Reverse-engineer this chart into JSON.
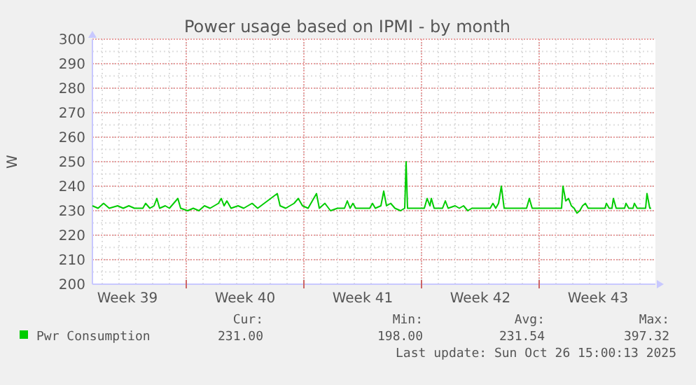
{
  "chart_data": {
    "type": "line",
    "title": "Power usage based on IPMI - by month",
    "ylabel": "W",
    "xlim": [
      "2025-09-23T10:00",
      "2025-10-26T22:00"
    ],
    "xticks": [
      {
        "value": "2025-09-25T12:00",
        "label": "Week 39"
      },
      {
        "value": "2025-09-29T00:00",
        "label": null
      },
      {
        "value": "2025-10-02T12:00",
        "label": "Week 40"
      },
      {
        "value": "2025-10-06T00:00",
        "label": null
      },
      {
        "value": "2025-10-09T12:00",
        "label": "Week 41"
      },
      {
        "value": "2025-10-13T00:00",
        "label": null
      },
      {
        "value": "2025-10-16T12:00",
        "label": "Week 42"
      },
      {
        "value": "2025-10-20T00:00",
        "label": null
      },
      {
        "value": "2025-10-23T12:00",
        "label": "Week 43"
      }
    ],
    "ylim": [
      200,
      300
    ],
    "yticks": [
      200,
      210,
      220,
      230,
      240,
      250,
      260,
      270,
      280,
      290,
      300
    ],
    "grid": true,
    "legend": "bottom",
    "marker": "none",
    "line_style": "solid",
    "series": [
      {
        "name": "Pwr Consumption",
        "color": "#00cc00",
        "x": [
          "2025-09-23T10:00",
          "2025-09-23T18:00",
          "2025-09-24T02:00",
          "2025-09-24T10:00",
          "2025-09-24T22:00",
          "2025-09-25T06:00",
          "2025-09-25T14:00",
          "2025-09-25T22:00",
          "2025-09-26T10:00",
          "2025-09-26T14:00",
          "2025-09-26T20:00",
          "2025-09-27T02:00",
          "2025-09-27T06:00",
          "2025-09-27T10:00",
          "2025-09-27T18:00",
          "2025-09-28T00:00",
          "2025-09-28T12:00",
          "2025-09-28T16:00",
          "2025-09-29T02:00",
          "2025-09-29T10:00",
          "2025-09-29T18:00",
          "2025-09-30T02:00",
          "2025-09-30T10:00",
          "2025-09-30T22:00",
          "2025-10-01T02:00",
          "2025-10-01T06:00",
          "2025-10-01T10:00",
          "2025-10-01T16:00",
          "2025-10-02T02:00",
          "2025-10-02T10:00",
          "2025-10-02T22:00",
          "2025-10-03T06:00",
          "2025-10-04T10:00",
          "2025-10-04T14:00",
          "2025-10-04T22:00",
          "2025-10-05T10:00",
          "2025-10-05T16:00",
          "2025-10-05T22:00",
          "2025-10-06T06:00",
          "2025-10-06T18:00",
          "2025-10-06T22:00",
          "2025-10-07T06:00",
          "2025-10-07T14:00",
          "2025-10-08T00:00",
          "2025-10-08T10:00",
          "2025-10-08T14:00",
          "2025-10-08T18:00",
          "2025-10-08T22:00",
          "2025-10-09T02:00",
          "2025-10-09T22:00",
          "2025-10-10T02:00",
          "2025-10-10T06:00",
          "2025-10-10T14:00",
          "2025-10-10T18:00",
          "2025-10-10T22:00",
          "2025-10-11T04:00",
          "2025-10-11T10:00",
          "2025-10-11T18:00",
          "2025-10-12T00:00",
          "2025-10-12T02:00",
          "2025-10-12T04:00",
          "2025-10-13T04:00",
          "2025-10-13T08:00",
          "2025-10-13T12:00",
          "2025-10-13T14:00",
          "2025-10-13T18:00",
          "2025-10-14T06:00",
          "2025-10-14T10:00",
          "2025-10-14T14:00",
          "2025-10-15T00:00",
          "2025-10-15T06:00",
          "2025-10-15T12:00",
          "2025-10-15T18:00",
          "2025-10-16T00:00",
          "2025-10-17T02:00",
          "2025-10-17T06:00",
          "2025-10-17T10:00",
          "2025-10-17T14:00",
          "2025-10-17T18:00",
          "2025-10-17T22:00",
          "2025-10-19T06:00",
          "2025-10-19T10:00",
          "2025-10-19T14:00",
          "2025-10-21T08:00",
          "2025-10-21T10:00",
          "2025-10-21T14:00",
          "2025-10-21T18:00",
          "2025-10-21T22:00",
          "2025-10-22T02:00",
          "2025-10-22T06:00",
          "2025-10-22T10:00",
          "2025-10-22T14:00",
          "2025-10-22T18:00",
          "2025-10-22T22:00",
          "2025-10-23T22:00",
          "2025-10-24T00:00",
          "2025-10-24T04:00",
          "2025-10-24T08:00",
          "2025-10-24T10:00",
          "2025-10-24T14:00",
          "2025-10-25T02:00",
          "2025-10-25T04:00",
          "2025-10-25T08:00",
          "2025-10-25T14:00",
          "2025-10-25T16:00",
          "2025-10-25T20:00",
          "2025-10-26T08:00",
          "2025-10-26T10:00",
          "2025-10-26T14:00",
          "2025-10-26T16:00"
        ],
        "values": [
          232,
          231,
          233,
          231,
          232,
          231,
          232,
          231,
          231,
          233,
          231,
          232,
          235,
          231,
          232,
          231,
          235,
          231,
          230,
          231,
          230,
          232,
          231,
          233,
          235,
          232,
          234,
          231,
          232,
          231,
          233,
          231,
          237,
          232,
          231,
          233,
          235,
          232,
          231,
          237,
          231,
          233,
          230,
          231,
          231,
          234,
          231,
          233,
          231,
          231,
          233,
          231,
          232,
          238,
          232,
          233,
          231,
          230,
          231,
          250,
          231,
          231,
          235,
          232,
          235,
          231,
          231,
          234,
          231,
          232,
          231,
          232,
          230,
          231,
          231,
          233,
          231,
          233,
          240,
          231,
          231,
          235,
          231,
          231,
          240,
          234,
          235,
          232,
          231,
          229,
          230,
          232,
          233,
          231,
          231,
          233,
          231,
          231,
          235,
          231,
          231,
          233,
          231,
          231,
          233,
          231,
          231,
          237,
          231,
          231
        ]
      }
    ],
    "annotations": [
      "Cur:",
      "Min:",
      "Avg:",
      "Max:",
      "231.00",
      "198.00",
      "231.54",
      "397.32",
      "Last update: Sun Oct 26 15:00:13 2025"
    ]
  }
}
